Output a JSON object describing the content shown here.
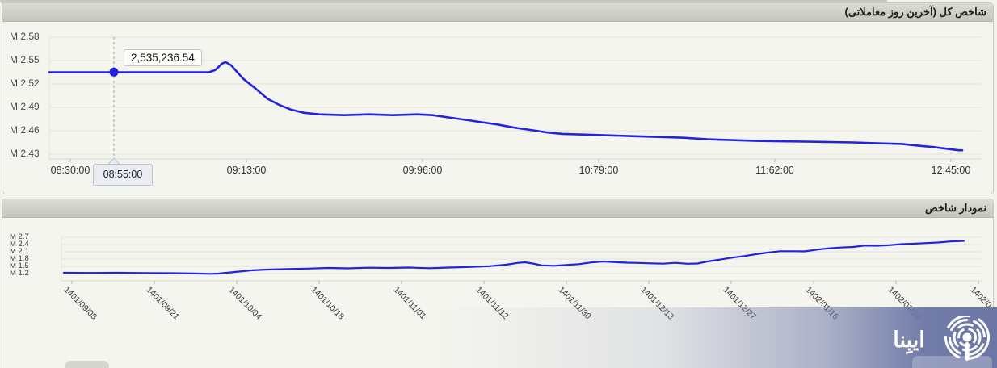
{
  "colors": {
    "line": "#2323dd",
    "panel_bg": "#f5f5ef",
    "header_bg": "#cfcfc9",
    "grid": "#e3e2db",
    "watermark": "#6b76a5"
  },
  "panel1": {
    "title": "شاخص کل (آخرین روز معاملاتی)"
  },
  "panel2": {
    "title": "نمودار شاخص"
  },
  "chart1": {
    "y_labels": [
      "M 2.58",
      "M 2.55",
      "M 2.52",
      "M 2.49",
      "M 2.46",
      "M 2.43"
    ],
    "x_labels": [
      "08:30:00",
      "09:13:00",
      "09:96:00",
      "10:79:00",
      "11:62:00",
      "12:45:00"
    ],
    "marker": {
      "time": "08:55:00",
      "value_label": "2,535,236.54"
    }
  },
  "chart2": {
    "y_labels": [
      "M 2.7",
      "M 2.4",
      "M 2.1",
      "M 1.8",
      "M 1.5",
      "M 1.2"
    ],
    "x_labels": [
      "1401/09/08",
      "1401/09/21",
      "1401/10/04",
      "1401/10/18",
      "1401/11/01",
      "1401/11/12",
      "1401/11/30",
      "1401/12/13",
      "1401/12/27",
      "1402/01/16",
      "1402/01/30",
      "1402/0"
    ]
  },
  "watermark": {
    "text": "ایبِنا"
  },
  "chart_data": [
    {
      "type": "line",
      "title": "شاخص کل (آخرین روز معاملاتی)",
      "unit": "M (millions)",
      "ylim_M": [
        2.43,
        2.58
      ],
      "grid": true,
      "x_tick_labels": [
        "08:30:00",
        "09:13:00",
        "09:96:00",
        "10:79:00",
        "11:62:00",
        "12:45:00"
      ],
      "values_at_ticks_M": [
        2.535,
        2.527,
        2.481,
        2.455,
        2.447,
        2.436
      ],
      "highlight": {
        "time": "08:55:00",
        "value": 2535236.54,
        "value_M": 2.5352,
        "frac": 0.0708
      },
      "series_frac_valueM": [
        [
          0,
          2.535
        ],
        [
          0.175,
          2.535
        ],
        [
          0.182,
          2.538
        ],
        [
          0.189,
          2.546
        ],
        [
          0.193,
          2.548
        ],
        [
          0.199,
          2.544
        ],
        [
          0.206,
          2.535
        ],
        [
          0.212,
          2.527
        ],
        [
          0.226,
          2.514
        ],
        [
          0.239,
          2.501
        ],
        [
          0.252,
          2.493
        ],
        [
          0.265,
          2.487
        ],
        [
          0.279,
          2.483
        ],
        [
          0.296,
          2.481
        ],
        [
          0.323,
          2.48
        ],
        [
          0.35,
          2.481
        ],
        [
          0.376,
          2.48
        ],
        [
          0.403,
          2.481
        ],
        [
          0.42,
          2.48
        ],
        [
          0.438,
          2.477
        ],
        [
          0.456,
          2.474
        ],
        [
          0.473,
          2.471
        ],
        [
          0.491,
          2.468
        ],
        [
          0.509,
          2.464
        ],
        [
          0.527,
          2.461
        ],
        [
          0.544,
          2.458
        ],
        [
          0.562,
          2.456
        ],
        [
          0.588,
          2.455
        ],
        [
          0.615,
          2.454
        ],
        [
          0.642,
          2.453
        ],
        [
          0.668,
          2.452
        ],
        [
          0.695,
          2.451
        ],
        [
          0.721,
          2.449
        ],
        [
          0.748,
          2.448
        ],
        [
          0.774,
          2.447
        ],
        [
          0.801,
          2.4465
        ],
        [
          0.827,
          2.446
        ],
        [
          0.854,
          2.4455
        ],
        [
          0.881,
          2.445
        ],
        [
          0.907,
          2.444
        ],
        [
          0.934,
          2.443
        ],
        [
          0.951,
          2.441
        ],
        [
          0.969,
          2.439
        ],
        [
          0.982,
          2.437
        ],
        [
          0.996,
          2.435
        ],
        [
          1,
          2.435
        ]
      ]
    },
    {
      "type": "line",
      "title": "نمودار شاخص",
      "unit": "M (millions)",
      "ylim_M": [
        1.2,
        2.7
      ],
      "grid": true,
      "x_tick_labels": [
        "1401/09/08",
        "1401/09/21",
        "1401/10/04",
        "1401/10/18",
        "1401/11/01",
        "1401/11/12",
        "1401/11/30",
        "1401/12/13",
        "1401/12/27",
        "1402/01/16",
        "1402/01/30",
        "1402/0"
      ],
      "values_at_ticks_M": [
        1.23,
        1.21,
        1.27,
        1.41,
        1.44,
        1.51,
        1.55,
        1.64,
        1.85,
        2.12,
        2.4,
        2.55
      ],
      "series_frac_valueM": [
        [
          0,
          1.233
        ],
        [
          0.03,
          1.227
        ],
        [
          0.06,
          1.233
        ],
        [
          0.09,
          1.223
        ],
        [
          0.12,
          1.217
        ],
        [
          0.145,
          1.203
        ],
        [
          0.163,
          1.19
        ],
        [
          0.172,
          1.2
        ],
        [
          0.19,
          1.267
        ],
        [
          0.208,
          1.333
        ],
        [
          0.226,
          1.367
        ],
        [
          0.248,
          1.39
        ],
        [
          0.271,
          1.407
        ],
        [
          0.293,
          1.433
        ],
        [
          0.316,
          1.417
        ],
        [
          0.338,
          1.443
        ],
        [
          0.361,
          1.433
        ],
        [
          0.383,
          1.45
        ],
        [
          0.406,
          1.423
        ],
        [
          0.428,
          1.45
        ],
        [
          0.45,
          1.473
        ],
        [
          0.473,
          1.507
        ],
        [
          0.491,
          1.567
        ],
        [
          0.504,
          1.64
        ],
        [
          0.512,
          1.667
        ],
        [
          0.521,
          1.617
        ],
        [
          0.531,
          1.54
        ],
        [
          0.545,
          1.523
        ],
        [
          0.558,
          1.557
        ],
        [
          0.572,
          1.59
        ],
        [
          0.585,
          1.657
        ],
        [
          0.599,
          1.7
        ],
        [
          0.612,
          1.673
        ],
        [
          0.626,
          1.65
        ],
        [
          0.639,
          1.64
        ],
        [
          0.652,
          1.623
        ],
        [
          0.666,
          1.61
        ],
        [
          0.679,
          1.643
        ],
        [
          0.693,
          1.607
        ],
        [
          0.704,
          1.617
        ],
        [
          0.715,
          1.7
        ],
        [
          0.729,
          1.777
        ],
        [
          0.742,
          1.857
        ],
        [
          0.756,
          1.923
        ],
        [
          0.769,
          2.0
        ],
        [
          0.783,
          2.073
        ],
        [
          0.796,
          2.123
        ],
        [
          0.81,
          2.123
        ],
        [
          0.823,
          2.117
        ],
        [
          0.837,
          2.19
        ],
        [
          0.85,
          2.243
        ],
        [
          0.863,
          2.277
        ],
        [
          0.877,
          2.3
        ],
        [
          0.89,
          2.357
        ],
        [
          0.904,
          2.35
        ],
        [
          0.917,
          2.373
        ],
        [
          0.931,
          2.417
        ],
        [
          0.944,
          2.433
        ],
        [
          0.958,
          2.46
        ],
        [
          0.971,
          2.483
        ],
        [
          0.985,
          2.527
        ],
        [
          1,
          2.55
        ]
      ]
    }
  ]
}
